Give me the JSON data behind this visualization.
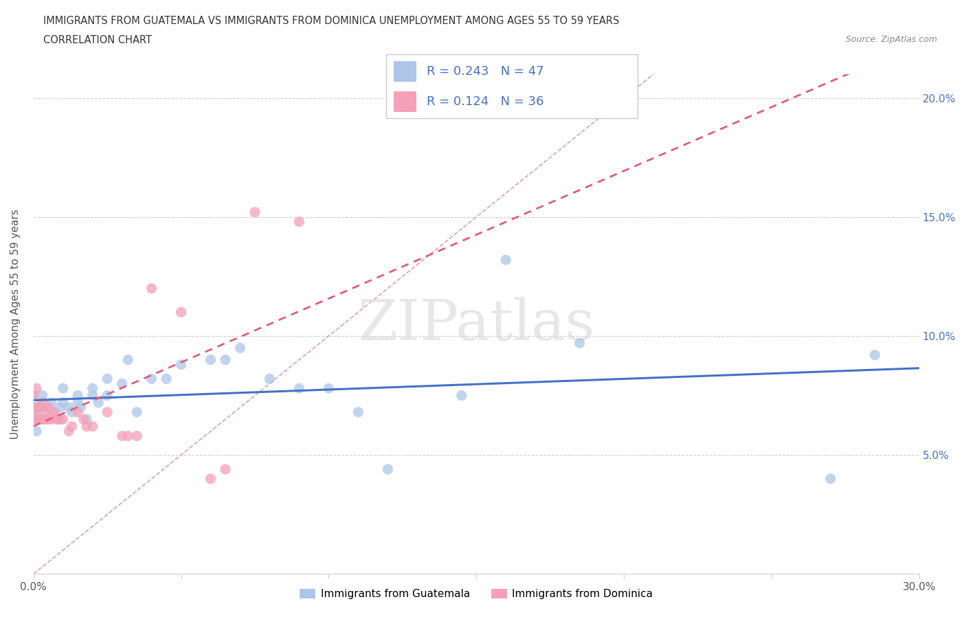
{
  "title_line1": "IMMIGRANTS FROM GUATEMALA VS IMMIGRANTS FROM DOMINICA UNEMPLOYMENT AMONG AGES 55 TO 59 YEARS",
  "title_line2": "CORRELATION CHART",
  "source_text": "Source: ZipAtlas.com",
  "ylabel": "Unemployment Among Ages 55 to 59 years",
  "xlim": [
    0.0,
    0.3
  ],
  "ylim": [
    0.0,
    0.21
  ],
  "xticks": [
    0.0,
    0.05,
    0.1,
    0.15,
    0.2,
    0.25,
    0.3
  ],
  "xticklabels": [
    "0.0%",
    "",
    "",
    "",
    "",
    "",
    "30.0%"
  ],
  "yticks": [
    0.0,
    0.05,
    0.1,
    0.15,
    0.2
  ],
  "yticklabels": [
    "",
    "5.0%",
    "10.0%",
    "15.0%",
    "20.0%"
  ],
  "r_guatemala": 0.243,
  "n_guatemala": 47,
  "r_dominica": 0.124,
  "n_dominica": 36,
  "color_guatemala": "#adc6e8",
  "color_dominica": "#f4a0b8",
  "line_color_guatemala": "#4472c4",
  "line_color_dominica": "#e05c7a",
  "diagonal_color": "#d8a0b0",
  "watermark": "ZIPatlas",
  "legend_label_guatemala": "Immigrants from Guatemala",
  "legend_label_dominica": "Immigrants from Dominica",
  "guatemala_x": [
    0.0,
    0.0,
    0.0,
    0.001,
    0.001,
    0.002,
    0.002,
    0.003,
    0.003,
    0.004,
    0.005,
    0.006,
    0.007,
    0.008,
    0.009,
    0.01,
    0.01,
    0.012,
    0.013,
    0.015,
    0.015,
    0.016,
    0.018,
    0.02,
    0.02,
    0.022,
    0.025,
    0.025,
    0.03,
    0.032,
    0.035,
    0.04,
    0.045,
    0.05,
    0.06,
    0.065,
    0.07,
    0.08,
    0.09,
    0.1,
    0.11,
    0.12,
    0.145,
    0.16,
    0.185,
    0.27,
    0.285
  ],
  "guatemala_y": [
    0.065,
    0.07,
    0.075,
    0.06,
    0.068,
    0.065,
    0.07,
    0.07,
    0.075,
    0.065,
    0.07,
    0.072,
    0.068,
    0.065,
    0.07,
    0.072,
    0.078,
    0.07,
    0.068,
    0.072,
    0.075,
    0.07,
    0.065,
    0.078,
    0.075,
    0.072,
    0.075,
    0.082,
    0.08,
    0.09,
    0.068,
    0.082,
    0.082,
    0.088,
    0.09,
    0.09,
    0.095,
    0.082,
    0.078,
    0.078,
    0.068,
    0.044,
    0.075,
    0.132,
    0.097,
    0.04,
    0.092
  ],
  "dominica_x": [
    0.0,
    0.0,
    0.0,
    0.0,
    0.001,
    0.001,
    0.001,
    0.002,
    0.002,
    0.003,
    0.003,
    0.004,
    0.004,
    0.005,
    0.005,
    0.006,
    0.007,
    0.008,
    0.009,
    0.01,
    0.012,
    0.013,
    0.015,
    0.017,
    0.018,
    0.02,
    0.025,
    0.03,
    0.032,
    0.035,
    0.04,
    0.05,
    0.06,
    0.065,
    0.075,
    0.09
  ],
  "dominica_y": [
    0.065,
    0.068,
    0.07,
    0.075,
    0.065,
    0.07,
    0.078,
    0.065,
    0.07,
    0.065,
    0.072,
    0.065,
    0.068,
    0.065,
    0.07,
    0.065,
    0.068,
    0.065,
    0.065,
    0.065,
    0.06,
    0.062,
    0.068,
    0.065,
    0.062,
    0.062,
    0.068,
    0.058,
    0.058,
    0.058,
    0.12,
    0.11,
    0.04,
    0.044,
    0.152,
    0.148
  ]
}
